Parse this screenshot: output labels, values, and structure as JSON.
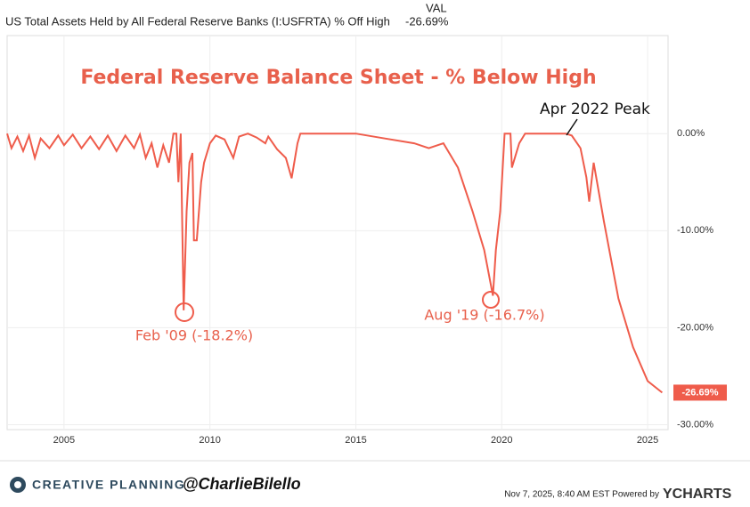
{
  "header": {
    "series_name": "US Total Assets Held by All Federal Reserve Banks (I:USFRTA) % Off High",
    "column": "VAL",
    "value": "-26.69%"
  },
  "chart_data": {
    "type": "line",
    "title": "Federal Reserve Balance Sheet - % Below High",
    "annotations": [
      "Apr 2022 Peak",
      "Feb '09 (-18.2%)",
      "Aug '19 (-16.7%)"
    ],
    "xlim": [
      2003.05,
      2025.7
    ],
    "xticks": [
      2005,
      2010,
      2015,
      2020,
      2025
    ],
    "ylim": [
      -30.5,
      10.1
    ],
    "yticks": [
      {
        "value": 0,
        "label": "0.00%"
      },
      {
        "value": -10,
        "label": "-10.00%"
      },
      {
        "value": -20,
        "label": "-20.00%"
      },
      {
        "value": -30,
        "label": "-30.00%"
      }
    ],
    "grid": true,
    "series": [
      {
        "name": "US Total Assets Held by All Federal Reserve Banks (I:USFRTA) % Off High",
        "color": "#ef5c4b",
        "x": [
          2003.05,
          2003.2,
          2003.4,
          2003.6,
          2003.8,
          2004.0,
          2004.2,
          2004.5,
          2004.8,
          2005.0,
          2005.3,
          2005.6,
          2005.9,
          2006.2,
          2006.5,
          2006.8,
          2007.1,
          2007.4,
          2007.6,
          2007.8,
          2008.0,
          2008.2,
          2008.4,
          2008.6,
          2008.75,
          2008.85,
          2008.92,
          2009.0,
          2009.1,
          2009.2,
          2009.3,
          2009.4,
          2009.45,
          2009.55,
          2009.7,
          2009.8,
          2010.0,
          2010.2,
          2010.5,
          2010.8,
          2011.0,
          2011.3,
          2011.6,
          2011.9,
          2012.0,
          2012.3,
          2012.6,
          2012.8,
          2013.0,
          2013.1,
          2014.0,
          2015.0,
          2016.0,
          2017.0,
          2017.5,
          2018.0,
          2018.5,
          2019.0,
          2019.4,
          2019.7,
          2019.8,
          2019.95,
          2020.1,
          2020.3,
          2020.35,
          2020.6,
          2020.8,
          2021.5,
          2022.2,
          2022.4,
          2022.7,
          2022.9,
          2023.0,
          2023.15,
          2023.5,
          2024.0,
          2024.5,
          2025.0,
          2025.5
        ],
        "values": [
          0,
          -1.5,
          -0.3,
          -1.8,
          -0.2,
          -2.5,
          -0.5,
          -1.5,
          -0.2,
          -1.2,
          -0.1,
          -1.5,
          -0.3,
          -1.6,
          -0.2,
          -1.8,
          -0.2,
          -1.5,
          -0.1,
          -2.5,
          -1.0,
          -3.5,
          -1.2,
          -3.0,
          0,
          0,
          -5,
          0,
          -18.2,
          -8,
          -3,
          -2,
          -11,
          -11,
          -5,
          -3,
          -1,
          -0.2,
          -0.6,
          -2.5,
          -0.3,
          0,
          -0.4,
          -1,
          -0.3,
          -1.6,
          -2.5,
          -4.6,
          -1,
          0,
          0,
          0,
          -0.5,
          -1,
          -1.5,
          -1.0,
          -3.5,
          -8,
          -12,
          -16.7,
          -12,
          -8,
          0,
          0,
          -3.5,
          -1,
          0,
          0,
          0,
          -0.2,
          -1.5,
          -4.5,
          -7,
          -3,
          -9,
          -17,
          -22,
          -25.5,
          -26.69
        ]
      }
    ]
  },
  "footer": {
    "brand": "CREATIVE PLANNING",
    "handle": "@CharlieBilello",
    "timestamp": "Nov 7, 2025, 8:40 AM EST Powered by",
    "source": "YCHARTS"
  }
}
